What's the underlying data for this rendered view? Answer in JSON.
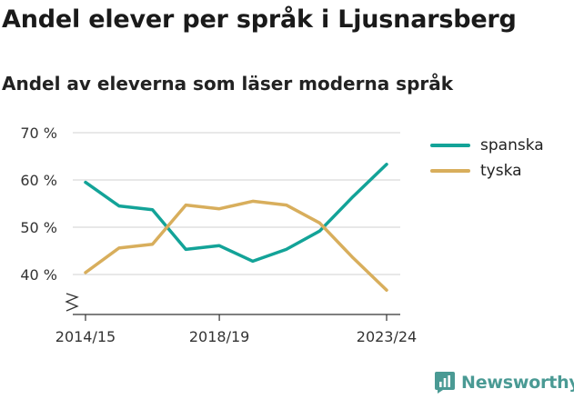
{
  "title": "Andel elever per språk i Ljusnarsberg",
  "subtitle": "Andel av eleverna som läser moderna språk",
  "brand": {
    "name": "Newsworthy",
    "icon": "newsworthy-logo-icon"
  },
  "colors": {
    "spanska": "#13a398",
    "tyska": "#d8ae5c",
    "grid": "#d9d9d9",
    "axis": "#333333"
  },
  "chart_data": {
    "type": "line",
    "x": [
      "2014/15",
      "2015/16",
      "2016/17",
      "2017/18",
      "2018/19",
      "2019/20",
      "2020/21",
      "2021/22",
      "2022/23",
      "2023/24"
    ],
    "x_tick_labels": [
      "2014/15",
      "2018/19",
      "2023/24"
    ],
    "series": [
      {
        "name": "spanska",
        "color": "#13a398",
        "values": [
          59.5,
          54.5,
          53.7,
          45.3,
          46.1,
          42.8,
          45.3,
          49.2,
          56.5,
          63.3
        ]
      },
      {
        "name": "tyska",
        "color": "#d8ae5c",
        "values": [
          40.4,
          45.6,
          46.4,
          54.7,
          53.9,
          55.5,
          54.7,
          50.9,
          43.5,
          36.7
        ]
      }
    ],
    "y_ticks": [
      40,
      50,
      60,
      70
    ],
    "y_tick_labels": [
      "40 %",
      "50 %",
      "60 %",
      "70 %"
    ],
    "ylim": [
      32,
      70
    ],
    "y_axis_break": true,
    "grid": "horizontal",
    "legend_position": "right"
  }
}
